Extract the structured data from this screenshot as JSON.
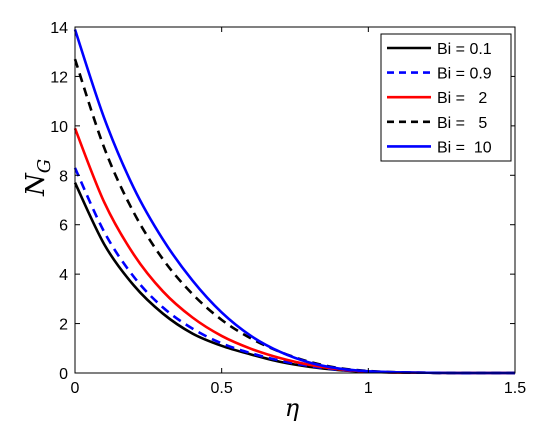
{
  "chart_data": {
    "type": "line",
    "title": "",
    "xlabel": "η",
    "ylabel_main": "N",
    "ylabel_sub": "G",
    "xlim": [
      0,
      1.5
    ],
    "ylim": [
      0,
      14
    ],
    "xticks": [
      0,
      0.5,
      1,
      1.5
    ],
    "xtick_labels": [
      "0",
      "0.5",
      "1",
      "1.5"
    ],
    "yticks": [
      0,
      2,
      4,
      6,
      8,
      10,
      12,
      14
    ],
    "ytick_labels": [
      "0",
      "2",
      "4",
      "6",
      "8",
      "10",
      "12",
      "14"
    ],
    "grid": false,
    "legend_position": "top-right",
    "x": [
      0,
      0.1,
      0.2,
      0.3,
      0.4,
      0.5,
      0.6,
      0.7,
      0.8,
      0.9,
      1.0,
      1.1,
      1.2,
      1.3,
      1.4,
      1.5
    ],
    "series": [
      {
        "name": "Bi = 0.1",
        "label": "Bi = 0.1",
        "color": "#000000",
        "dash": "solid",
        "values": [
          7.7,
          5.2,
          3.55,
          2.4,
          1.6,
          1.1,
          0.75,
          0.45,
          0.25,
          0.12,
          0.05,
          0.02,
          0.01,
          0.0,
          0.0,
          0.0
        ]
      },
      {
        "name": "Bi = 0.9",
        "label": "Bi = 0.9",
        "color": "#0000ff",
        "dash": "dashed",
        "values": [
          8.3,
          5.7,
          3.9,
          2.65,
          1.8,
          1.2,
          0.8,
          0.5,
          0.28,
          0.13,
          0.05,
          0.02,
          0.01,
          0.0,
          0.0,
          0.0
        ]
      },
      {
        "name": "Bi = 2",
        "label": "Bi =   2",
        "color": "#ff0000",
        "dash": "solid",
        "values": [
          9.9,
          6.9,
          4.8,
          3.3,
          2.25,
          1.5,
          0.98,
          0.6,
          0.33,
          0.15,
          0.06,
          0.02,
          0.01,
          0.0,
          0.0,
          0.0
        ]
      },
      {
        "name": "Bi = 5",
        "label": "Bi =   5",
        "color": "#000000",
        "dash": "dashed",
        "values": [
          12.7,
          9.1,
          6.5,
          4.6,
          3.2,
          2.15,
          1.4,
          0.85,
          0.45,
          0.2,
          0.08,
          0.03,
          0.01,
          0.0,
          0.0,
          0.0
        ]
      },
      {
        "name": "Bi = 10",
        "label": "Bi =  10",
        "color": "#0000ff",
        "dash": "solid",
        "values": [
          13.9,
          10.3,
          7.5,
          5.4,
          3.75,
          2.45,
          1.5,
          0.85,
          0.42,
          0.18,
          0.07,
          0.03,
          0.01,
          0.0,
          0.0,
          0.0
        ]
      }
    ]
  }
}
